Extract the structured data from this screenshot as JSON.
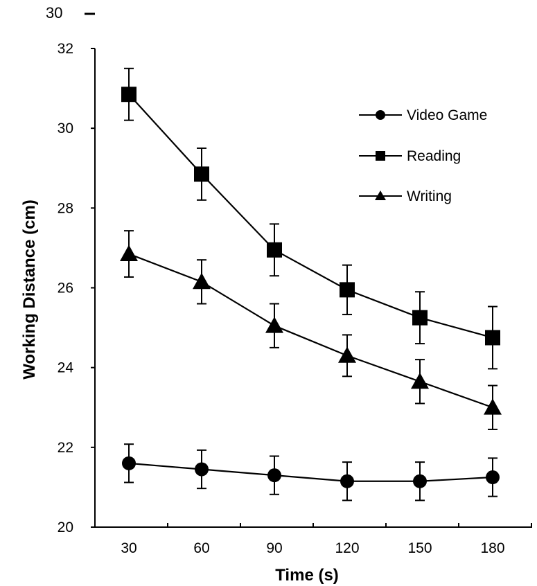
{
  "chart_data": {
    "type": "line",
    "title": "",
    "xlabel": "Time (s)",
    "ylabel": "Working Distance (cm)",
    "x": [
      30,
      60,
      90,
      120,
      150,
      180
    ],
    "x_tick_labels": [
      "30",
      "60",
      "90",
      "120",
      "150",
      "180"
    ],
    "ylim": [
      20,
      32
    ],
    "y_tick_labels": [
      "20",
      "22",
      "24",
      "26",
      "28",
      "30",
      "32"
    ],
    "stray_top_label": "30",
    "grid": false,
    "legend_position": "top-right",
    "series": [
      {
        "name": "Video Game",
        "marker": "circle",
        "values": [
          21.6,
          21.45,
          21.3,
          21.15,
          21.15,
          21.25
        ],
        "error": [
          0.48,
          0.48,
          0.48,
          0.48,
          0.48,
          0.48
        ]
      },
      {
        "name": "Reading",
        "marker": "square",
        "values": [
          30.85,
          28.85,
          26.95,
          25.95,
          25.25,
          24.75
        ],
        "error": [
          0.65,
          0.65,
          0.65,
          0.62,
          0.65,
          0.78
        ]
      },
      {
        "name": "Writing",
        "marker": "triangle",
        "values": [
          26.85,
          26.15,
          25.05,
          24.3,
          23.65,
          23.0
        ],
        "error": [
          0.58,
          0.55,
          0.55,
          0.52,
          0.55,
          0.55
        ]
      }
    ]
  }
}
